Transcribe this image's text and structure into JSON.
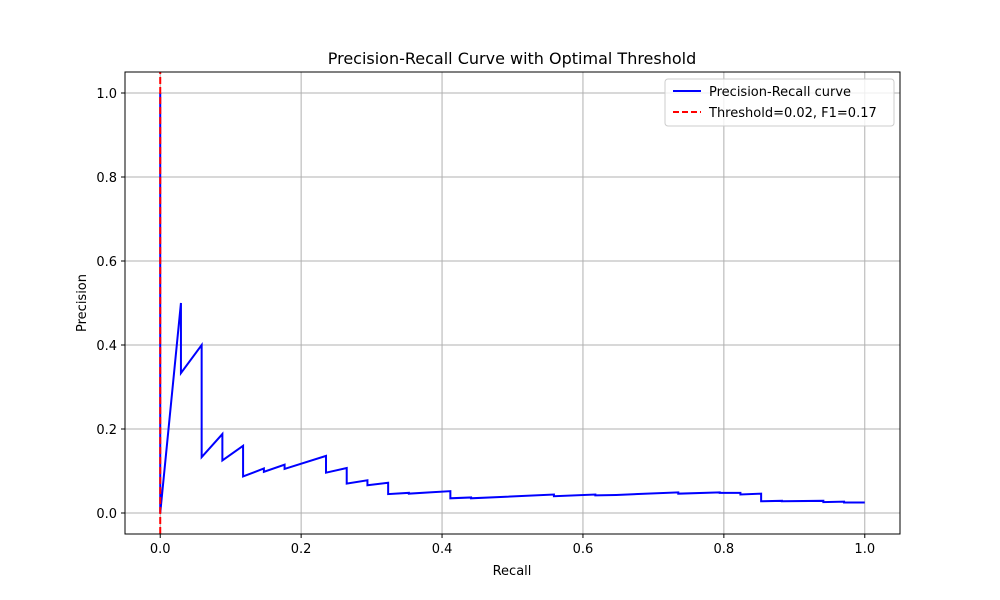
{
  "chart_data": {
    "type": "line",
    "title": "Precision-Recall Curve with Optimal Threshold",
    "xlabel": "Recall",
    "ylabel": "Precision",
    "xlim": [
      -0.05,
      1.05
    ],
    "ylim": [
      -0.05,
      1.05
    ],
    "xticks": [
      0.0,
      0.2,
      0.4,
      0.6,
      0.8,
      1.0
    ],
    "xtick_labels": [
      "0.0",
      "0.2",
      "0.4",
      "0.6",
      "0.8",
      "1.0"
    ],
    "yticks": [
      0.0,
      0.2,
      0.4,
      0.6,
      0.8,
      1.0
    ],
    "ytick_labels": [
      "0.0",
      "0.2",
      "0.4",
      "0.6",
      "0.8",
      "1.0"
    ],
    "grid": true,
    "legend_position": "top-right",
    "series": [
      {
        "name": "Precision-Recall curve",
        "color": "#0000ff",
        "style": "solid",
        "x": [
          0.0,
          0.0,
          0.0294,
          0.0294,
          0.0588,
          0.0588,
          0.0882,
          0.0882,
          0.1176,
          0.1176,
          0.1471,
          0.1471,
          0.1765,
          0.1765,
          0.2353,
          0.2353,
          0.2647,
          0.2647,
          0.2941,
          0.2941,
          0.3235,
          0.3235,
          0.3529,
          0.3529,
          0.3824,
          0.3824,
          0.4118,
          0.4118,
          0.4412,
          0.4412,
          0.5588,
          0.5588,
          0.6176,
          0.6176,
          0.6471,
          0.6471,
          0.7353,
          0.7353,
          0.7941,
          0.7941,
          0.8235,
          0.8235,
          0.8529,
          0.8529,
          0.8824,
          0.8824,
          0.9412,
          0.9412,
          0.9706,
          0.9706,
          1.0
        ],
        "y": [
          1.0,
          0.0,
          0.5,
          0.333,
          0.4,
          0.133,
          0.188,
          0.125,
          0.16,
          0.087,
          0.106,
          0.098,
          0.115,
          0.105,
          0.136,
          0.096,
          0.107,
          0.07,
          0.078,
          0.066,
          0.072,
          0.045,
          0.048,
          0.046,
          0.049,
          0.049,
          0.052,
          0.035,
          0.037,
          0.035,
          0.044,
          0.04,
          0.044,
          0.042,
          0.043,
          0.043,
          0.049,
          0.046,
          0.049,
          0.048,
          0.048,
          0.044,
          0.046,
          0.028,
          0.029,
          0.028,
          0.029,
          0.026,
          0.027,
          0.025,
          0.025
        ]
      },
      {
        "name": "Threshold=0.02, F1=0.17",
        "color": "#ff0000",
        "style": "dashed",
        "x": [
          0.0,
          0.0
        ],
        "y": [
          -0.05,
          1.05
        ]
      }
    ]
  }
}
